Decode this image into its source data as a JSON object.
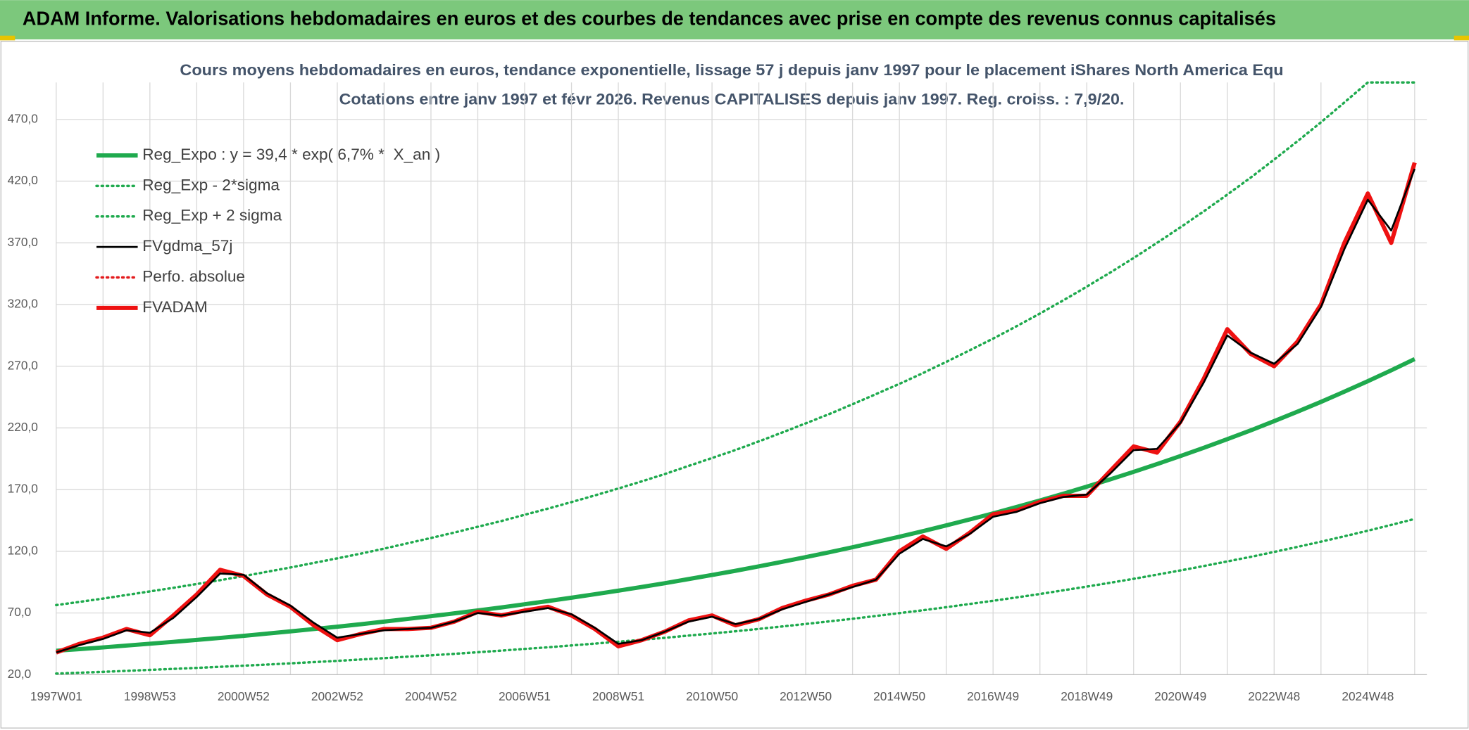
{
  "chart_data": {
    "type": "line",
    "title": "ADAM Informe. Valorisations hebdomadaires en euros et des courbes de tendances avec prise en compte des revenus connus capitalisés",
    "subtitle": [
      "Cours moyens hebdomadaires en euros, tendance exponentielle, lissage 57 j depuis janv 1997 pour le placement iShares North America Equ",
      "Cotations entre janv 1997 et févr 2026. Revenus CAPITALISES depuis janv 1997. Reg. croiss. : 7,9/20."
    ],
    "categories": [
      "1997W01",
      null,
      null,
      null,
      "1998W53",
      null,
      null,
      null,
      "2000W52",
      null,
      null,
      null,
      "2002W52",
      null,
      null,
      null,
      "2004W52",
      null,
      null,
      null,
      "2006W51",
      null,
      null,
      null,
      "2008W51",
      null,
      null,
      null,
      "2010W50",
      null,
      null,
      null,
      "2012W50",
      null,
      null,
      null,
      "2014W50",
      null,
      null,
      null,
      "2016W49",
      null,
      null,
      null,
      "2018W49",
      null,
      null,
      null,
      "2020W49",
      null,
      null,
      null,
      "2022W48",
      null,
      null,
      null,
      "2024W48",
      null,
      null
    ],
    "ylim": [
      20,
      500
    ],
    "yticks": [
      {
        "value": 20,
        "label": "20,0"
      },
      {
        "value": 70,
        "label": "70,0"
      },
      {
        "value": 120,
        "label": "120,0"
      },
      {
        "value": 170,
        "label": "170,0"
      },
      {
        "value": 220,
        "label": "220,0"
      },
      {
        "value": 270,
        "label": "270,0"
      },
      {
        "value": 320,
        "label": "320,0"
      },
      {
        "value": 370,
        "label": "370,0"
      },
      {
        "value": 420,
        "label": "420,0"
      },
      {
        "value": 470,
        "label": "470,0"
      }
    ],
    "grid": true,
    "legend": "top-left",
    "series": [
      {
        "name": "Reg_Expo : y = 39,4 * exp( 6,7% *  X_an )",
        "color": "#1faa4e",
        "line_style": "thick",
        "values": [
          39.4,
          40.7,
          42.1,
          43.6,
          45.1,
          46.6,
          48.2,
          49.8,
          51.5,
          53.3,
          55.1,
          57.0,
          58.9,
          60.9,
          63.0,
          65.2,
          67.4,
          69.7,
          72.1,
          74.5,
          77.1,
          79.7,
          82.4,
          85.2,
          88.1,
          91.1,
          94.2,
          97.5,
          100.8,
          104.2,
          107.8,
          111.5,
          115.3,
          119.2,
          123.3,
          127.5,
          131.8,
          136.3,
          141.0,
          145.8,
          150.7,
          155.9,
          161.2,
          166.7,
          172.4,
          178.3,
          184.4,
          190.7,
          197.2,
          203.9,
          210.9,
          218.0,
          225.5,
          233.2,
          241.1,
          249.4,
          257.9,
          266.7,
          275.8
        ]
      },
      {
        "name": "Reg_Exp - 2*sigma",
        "color": "#1faa4e",
        "line_style": "dotted",
        "values": [
          20.9,
          21.6,
          22.3,
          23.1,
          23.9,
          24.7,
          25.5,
          26.4,
          27.3,
          28.2,
          29.2,
          30.2,
          31.2,
          32.3,
          33.4,
          34.6,
          35.7,
          36.9,
          38.2,
          39.5,
          40.9,
          42.2,
          43.7,
          45.2,
          46.7,
          48.3,
          49.9,
          51.7,
          53.4,
          55.2,
          57.1,
          59.1,
          61.1,
          63.2,
          65.3,
          67.6,
          69.9,
          72.2,
          74.7,
          77.3,
          79.9,
          82.6,
          85.4,
          88.4,
          91.4,
          94.5,
          97.7,
          101.1,
          104.5,
          108.1,
          111.8,
          115.5,
          119.5,
          123.6,
          127.8,
          132.2,
          136.7,
          141.4,
          146.2
        ]
      },
      {
        "name": "Reg_Exp + 2 sigma",
        "color": "#1faa4e",
        "line_style": "dotted",
        "values": [
          76.4,
          79.0,
          81.7,
          84.6,
          87.5,
          90.4,
          93.5,
          96.6,
          99.9,
          103.4,
          106.9,
          110.6,
          114.3,
          118.1,
          122.2,
          126.5,
          130.8,
          135.2,
          139.9,
          144.5,
          149.6,
          154.6,
          159.9,
          165.3,
          170.9,
          176.7,
          182.7,
          189.2,
          195.6,
          202.1,
          209.1,
          216.3,
          223.7,
          231.2,
          239.2,
          247.4,
          255.7,
          264.4,
          273.5,
          282.9,
          292.4,
          302.4,
          312.7,
          323.4,
          334.5,
          345.9,
          357.7,
          370.0,
          382.6,
          395.6,
          409.1,
          422.9,
          437.5,
          452.4,
          467.7,
          483.8,
          500,
          500,
          500
        ]
      },
      {
        "name": "FVgdma_57j",
        "color": "#000000",
        "line_style": "thin",
        "values": [
          38,
          44,
          49,
          56,
          54,
          66,
          83,
          102,
          101,
          86,
          76,
          62,
          50,
          53,
          56,
          57,
          58,
          63,
          70,
          68,
          71,
          74,
          69,
          58,
          45,
          48,
          55,
          63,
          67,
          61,
          65,
          73,
          79,
          85,
          91,
          97,
          118,
          130,
          124,
          134,
          148,
          152,
          159,
          164,
          166,
          183,
          202,
          203,
          224,
          257,
          295,
          281,
          272,
          288,
          318,
          365,
          405,
          380,
          430
        ]
      },
      {
        "name": "Perfo. absolue",
        "color": "#e31a1c",
        "line_style": "dotted"
      },
      {
        "name": "FVADAM",
        "color": "#ee1111",
        "line_style": "thick",
        "values": [
          38,
          45,
          50,
          57,
          52,
          68,
          85,
          105,
          100,
          85,
          75,
          60,
          48,
          53,
          57,
          57,
          58,
          63,
          71,
          68,
          72,
          75,
          68,
          57,
          43,
          48,
          55,
          64,
          68,
          60,
          65,
          74,
          80,
          85,
          92,
          97,
          120,
          132,
          122,
          135,
          150,
          153,
          160,
          165,
          165,
          185,
          205,
          200,
          225,
          260,
          300,
          280,
          270,
          290,
          320,
          370,
          410,
          370,
          435
        ]
      }
    ]
  }
}
